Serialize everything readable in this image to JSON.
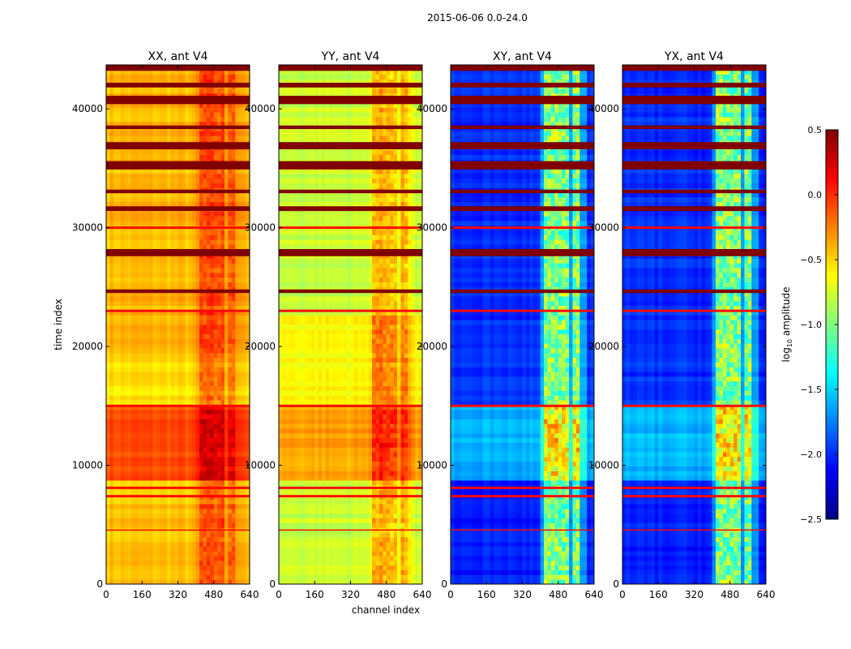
{
  "chart_data": {
    "type": "heatmap",
    "title": "2015-06-06 0.0-24.0",
    "xlabel": "channel index",
    "ylabel": "time index",
    "xlim": [
      0,
      640
    ],
    "ylim": [
      0,
      43700
    ],
    "xticks": [
      0,
      160,
      320,
      480,
      640
    ],
    "xtick_labels": [
      "0",
      "160",
      "320",
      "480",
      "640"
    ],
    "yticks": [
      0,
      10000,
      20000,
      30000,
      40000
    ],
    "ytick_labels": [
      "0",
      "10000",
      "20000",
      "30000",
      "40000"
    ],
    "colorbar": {
      "label": "log10 amplitude",
      "label_main": "log",
      "label_sub": "10",
      "label_rest": " amplitude",
      "colormap": "jet",
      "range": [
        -2.5,
        0.5
      ],
      "ticks": [
        0.5,
        0.0,
        -0.5,
        -1.0,
        -1.5,
        -2.0,
        -2.5
      ],
      "tick_labels": [
        "0.5",
        "0.0",
        "−0.5",
        "−1.0",
        "−1.5",
        "−2.0",
        "−2.5"
      ]
    },
    "flagged_time_bands": [
      [
        43200,
        43700
      ],
      [
        41800,
        42200
      ],
      [
        40400,
        41100
      ],
      [
        38300,
        38600
      ],
      [
        36600,
        37200
      ],
      [
        34900,
        35600
      ],
      [
        32900,
        33200
      ],
      [
        31400,
        31800
      ],
      [
        29900,
        30100
      ],
      [
        27600,
        28200
      ],
      [
        24500,
        24800
      ],
      [
        22900,
        23100
      ],
      [
        14900,
        15100
      ],
      [
        8000,
        8200
      ],
      [
        7300,
        7500
      ],
      [
        4500,
        4600
      ]
    ],
    "rfi_channel_ranges": [
      [
        410,
        440
      ],
      [
        455,
        490
      ],
      [
        500,
        535
      ],
      [
        545,
        580
      ]
    ],
    "panels": [
      {
        "title": "XX, ant V4",
        "segments": [
          [
            0,
            8600,
            -0.45
          ],
          [
            8600,
            14900,
            -0.12
          ],
          [
            14900,
            19000,
            -0.55
          ],
          [
            19000,
            43700,
            -0.42
          ]
        ],
        "rfi_boost": 0.35
      },
      {
        "title": "YY, ant V4",
        "segments": [
          [
            0,
            8600,
            -0.78
          ],
          [
            8600,
            14900,
            -0.35
          ],
          [
            14900,
            22800,
            -0.62
          ],
          [
            22800,
            43700,
            -0.78
          ]
        ],
        "rfi_boost": 0.4
      },
      {
        "title": "XY, ant V4",
        "segments": [
          [
            0,
            8600,
            -2.05
          ],
          [
            8600,
            14900,
            -1.6
          ],
          [
            14900,
            43700,
            -2.0
          ]
        ],
        "rfi_boost": 1.1
      },
      {
        "title": "YX, ant V4",
        "segments": [
          [
            0,
            8600,
            -2.05
          ],
          [
            8600,
            14900,
            -1.6
          ],
          [
            14900,
            43700,
            -2.0
          ]
        ],
        "rfi_boost": 1.1
      }
    ]
  }
}
